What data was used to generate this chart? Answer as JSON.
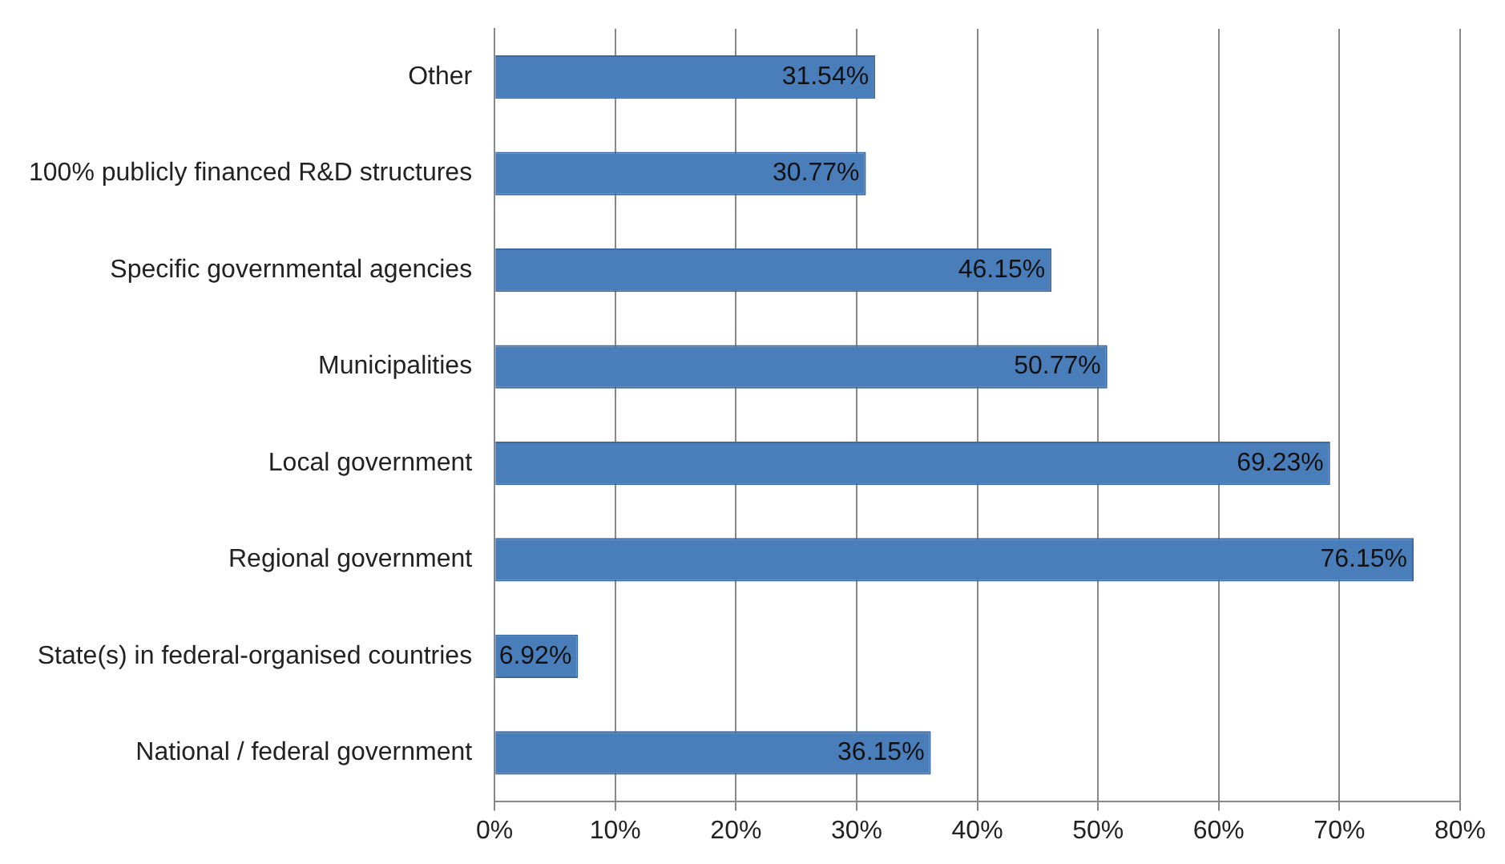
{
  "chart_data": {
    "type": "bar",
    "orientation": "horizontal",
    "categories": [
      "Other",
      "100% publicly financed R&D structures",
      "Specific governmental agencies",
      "Municipalities",
      "Local government",
      "Regional government",
      "State(s) in federal-organised countries",
      "National / federal government"
    ],
    "values": [
      31.54,
      30.77,
      46.15,
      50.77,
      69.23,
      76.15,
      6.92,
      36.15
    ],
    "value_labels": [
      "31.54%",
      "30.77%",
      "46.15%",
      "50.77%",
      "69.23%",
      "76.15%",
      "6.92%",
      "36.15%"
    ],
    "color": "#4a7ebb",
    "xlim": [
      0,
      80
    ],
    "xticks": [
      {
        "value": 0,
        "label": "0%"
      },
      {
        "value": 10,
        "label": "10%"
      },
      {
        "value": 20,
        "label": "20%"
      },
      {
        "value": 30,
        "label": "30%"
      },
      {
        "value": 40,
        "label": "40%"
      },
      {
        "value": 50,
        "label": "50%"
      },
      {
        "value": 60,
        "label": "60%"
      },
      {
        "value": 70,
        "label": "70%"
      },
      {
        "value": 80,
        "label": "80%"
      }
    ],
    "grid": "x",
    "legend": false
  }
}
